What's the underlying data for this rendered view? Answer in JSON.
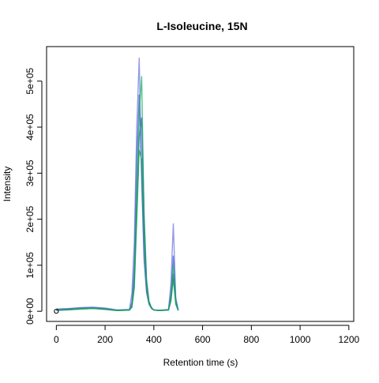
{
  "chart_data": {
    "type": "line",
    "title": "L-Isoleucine, 15N",
    "xlabel": "Retention time (s)",
    "ylabel": "Intensity",
    "xlim": [
      -40,
      1220
    ],
    "ylim": [
      -22000,
      575000
    ],
    "x_ticks": [
      0,
      200,
      400,
      600,
      800,
      1000,
      1200
    ],
    "x_tick_labels": [
      "0",
      "200",
      "400",
      "600",
      "800",
      "1000",
      "1200"
    ],
    "y_ticks": [
      0,
      100000,
      200000,
      300000,
      400000,
      500000
    ],
    "y_tick_labels": [
      "0e+00",
      "1e+05",
      "2e+05",
      "3e+05",
      "4e+05",
      "5e+05"
    ],
    "grid": false,
    "legend": "none",
    "marker_point": {
      "x": 0,
      "y": 0
    },
    "colors": [
      "#7b7fe3",
      "#4f63d6",
      "#23b86a",
      "#1e7f87",
      "#19a05a"
    ],
    "series": [
      {
        "color": "#7b7fe3",
        "x": [
          0,
          50,
          100,
          150,
          200,
          250,
          300,
          310,
          320,
          330,
          340,
          350,
          360,
          370,
          380,
          390,
          400,
          420,
          460,
          470,
          480,
          490,
          500
        ],
        "y": [
          5000,
          6000,
          8000,
          9000,
          7000,
          3000,
          4000,
          40000,
          150000,
          400000,
          550000,
          280000,
          110000,
          40000,
          15000,
          6000,
          3000,
          2000,
          4000,
          60000,
          190000,
          30000,
          3000
        ]
      },
      {
        "color": "#4f63d6",
        "x": [
          0,
          50,
          100,
          150,
          200,
          250,
          300,
          310,
          320,
          330,
          340,
          350,
          360,
          370,
          380,
          390,
          400,
          420,
          460,
          470,
          480,
          490,
          500
        ],
        "y": [
          4000,
          5500,
          7000,
          8000,
          6000,
          2500,
          3500,
          20000,
          100000,
          330000,
          470000,
          300000,
          120000,
          45000,
          16000,
          6000,
          3000,
          2000,
          3000,
          40000,
          120000,
          25000,
          2500
        ]
      },
      {
        "color": "#23b86a",
        "x": [
          0,
          50,
          100,
          150,
          200,
          250,
          300,
          310,
          320,
          330,
          340,
          350,
          360,
          370,
          380,
          390,
          400,
          420,
          460,
          470,
          480,
          490,
          500
        ],
        "y": [
          3000,
          4000,
          6000,
          7000,
          5000,
          2000,
          3000,
          12000,
          70000,
          260000,
          430000,
          510000,
          200000,
          60000,
          20000,
          7000,
          3000,
          2000,
          3000,
          30000,
          100000,
          20000,
          2000
        ]
      },
      {
        "color": "#1e7f87",
        "x": [
          0,
          50,
          100,
          150,
          200,
          250,
          300,
          310,
          320,
          330,
          340,
          350,
          360,
          370,
          380,
          390,
          400,
          420,
          460,
          470,
          480,
          490,
          500
        ],
        "y": [
          2000,
          3000,
          5000,
          6000,
          4000,
          1500,
          2500,
          10000,
          60000,
          220000,
          380000,
          420000,
          210000,
          70000,
          22000,
          8000,
          3000,
          1500,
          2500,
          25000,
          80000,
          18000,
          2000
        ]
      },
      {
        "color": "#19a05a",
        "x": [
          0,
          50,
          100,
          150,
          200,
          250,
          300,
          310,
          320,
          330,
          340,
          350,
          360,
          370,
          380,
          390,
          400,
          420,
          460,
          470,
          480,
          490,
          500
        ],
        "y": [
          2500,
          3500,
          5000,
          6500,
          4500,
          1500,
          2500,
          9000,
          50000,
          200000,
          350000,
          330000,
          160000,
          55000,
          18000,
          7000,
          2500,
          1500,
          2500,
          22000,
          70000,
          15000,
          1500
        ]
      }
    ]
  }
}
